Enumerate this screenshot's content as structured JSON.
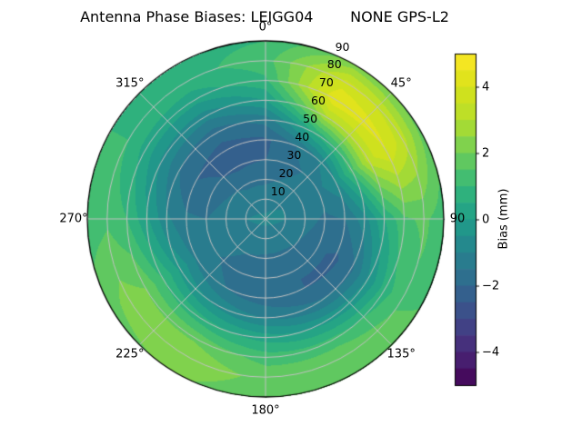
{
  "chart_data": {
    "type": "polar_contour",
    "title": "Antenna Phase Biases: LEIGG04        NONE GPS-L2",
    "theta_zero": "top",
    "theta_direction": "clockwise",
    "azimuth_ticks": {
      "angles_deg": [
        0,
        45,
        90,
        135,
        180,
        225,
        270,
        315
      ],
      "labels": [
        "0°",
        "45°",
        "90",
        "135°",
        "180°",
        "225°",
        "270°",
        "315°"
      ]
    },
    "radial_ticks": {
      "zenith_deg": [
        10,
        20,
        30,
        40,
        50,
        60,
        70,
        80,
        90
      ],
      "labels": [
        "10",
        "20",
        "30",
        "40",
        "50",
        "60",
        "70",
        "80",
        "90"
      ]
    },
    "levels": {
      "min": -5,
      "max": 5,
      "step": 0.5
    },
    "grid": {
      "azimuth_deg": [
        0,
        30,
        60,
        90,
        120,
        150,
        180,
        210,
        240,
        270,
        300,
        330,
        360
      ],
      "zenith_deg": [
        0,
        10,
        20,
        30,
        40,
        50,
        60,
        70,
        80,
        90
      ],
      "bias_mm": [
        [
          -0.9,
          -0.9,
          -0.9,
          -0.9,
          -0.9,
          -0.9,
          -0.9,
          -0.9,
          -0.9,
          -0.9,
          -0.9,
          -0.9,
          -0.9
        ],
        [
          -1.2,
          -1.1,
          -1.0,
          -1.0,
          -1.1,
          -1.2,
          -1.2,
          -1.2,
          -1.1,
          -1.0,
          -1.1,
          -1.2,
          -1.2
        ],
        [
          -1.6,
          -1.4,
          -1.2,
          -1.3,
          -1.5,
          -1.6,
          -1.6,
          -1.5,
          -1.3,
          -1.2,
          -1.4,
          -1.6,
          -1.6
        ],
        [
          -2.0,
          -1.6,
          -1.2,
          -1.6,
          -1.9,
          -2.0,
          -1.9,
          -1.7,
          -1.4,
          -1.5,
          -1.9,
          -2.1,
          -2.0
        ],
        [
          -2.1,
          -1.3,
          -0.5,
          -1.5,
          -2.1,
          -2.0,
          -1.8,
          -1.5,
          -1.1,
          -1.4,
          -2.0,
          -2.2,
          -2.1
        ],
        [
          -1.3,
          0.6,
          1.3,
          -0.7,
          -1.6,
          -1.4,
          -1.0,
          -0.6,
          -0.1,
          -0.9,
          -1.5,
          -1.8,
          -1.3
        ],
        [
          0.0,
          2.9,
          3.3,
          0.5,
          -0.4,
          -0.1,
          0.3,
          0.7,
          1.0,
          0.1,
          -0.6,
          -0.8,
          0.0
        ],
        [
          0.9,
          4.5,
          4.0,
          1.4,
          0.8,
          1.2,
          1.3,
          1.9,
          2.0,
          1.0,
          0.3,
          0.2,
          0.9
        ],
        [
          1.3,
          3.7,
          3.2,
          1.6,
          1.4,
          2.0,
          1.8,
          2.5,
          2.2,
          1.4,
          1.0,
          0.8,
          1.3
        ],
        [
          1.0,
          2.2,
          1.8,
          1.2,
          1.5,
          1.9,
          1.5,
          2.1,
          1.8,
          1.2,
          1.0,
          0.8,
          1.0
        ]
      ]
    },
    "colormap": {
      "name": "viridis",
      "stops": [
        [
          0.0,
          "#440154"
        ],
        [
          0.1,
          "#482878"
        ],
        [
          0.2,
          "#3e4989"
        ],
        [
          0.3,
          "#31688e"
        ],
        [
          0.4,
          "#26828e"
        ],
        [
          0.5,
          "#1f9e89"
        ],
        [
          0.6,
          "#35b779"
        ],
        [
          0.7,
          "#6ece58"
        ],
        [
          0.8,
          "#b5de2b"
        ],
        [
          0.9,
          "#d8e219"
        ],
        [
          1.0,
          "#fde725"
        ]
      ]
    },
    "colorbar": {
      "label": "Bias (mm)",
      "units": "mm",
      "range": [
        -5,
        5
      ],
      "ticks": [
        {
          "value": 4,
          "label": "4"
        },
        {
          "value": 2,
          "label": "2"
        },
        {
          "value": 0,
          "label": "0"
        },
        {
          "value": -2,
          "label": "−2"
        },
        {
          "value": -4,
          "label": "−4"
        }
      ]
    },
    "style": {
      "grid_color": "#c2c2c2",
      "outline_color": "#000000",
      "background": "#ffffff"
    }
  }
}
